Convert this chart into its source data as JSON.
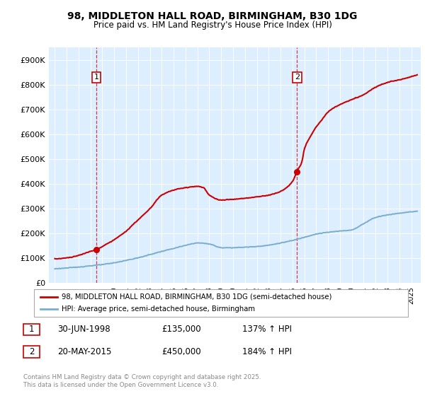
{
  "title1": "98, MIDDLETON HALL ROAD, BIRMINGHAM, B30 1DG",
  "title2": "Price paid vs. HM Land Registry's House Price Index (HPI)",
  "legend_line1": "98, MIDDLETON HALL ROAD, BIRMINGHAM, B30 1DG (semi-detached house)",
  "legend_line2": "HPI: Average price, semi-detached house, Birmingham",
  "annotation1_date": "30-JUN-1998",
  "annotation1_price": "£135,000",
  "annotation1_hpi": "137% ↑ HPI",
  "annotation2_date": "20-MAY-2015",
  "annotation2_price": "£450,000",
  "annotation2_hpi": "184% ↑ HPI",
  "footer": "Contains HM Land Registry data © Crown copyright and database right 2025.\nThis data is licensed under the Open Government Licence v3.0.",
  "red_color": "#cc0000",
  "blue_color": "#7aadcc",
  "plot_bg": "#ddeeff",
  "ylim_max": 950000,
  "yticks": [
    0,
    100000,
    200000,
    300000,
    400000,
    500000,
    600000,
    700000,
    800000,
    900000
  ],
  "ytick_labels": [
    "£0",
    "£100K",
    "£200K",
    "£300K",
    "£400K",
    "£500K",
    "£600K",
    "£700K",
    "£800K",
    "£900K"
  ],
  "sale1_x": 1998.5,
  "sale1_y": 135000,
  "sale2_x": 2015.38,
  "sale2_y": 450000,
  "xmin": 1994.5,
  "xmax": 2025.8,
  "hpi_anchors_x": [
    1995,
    1997,
    1998,
    1999,
    2000,
    2001,
    2002,
    2003,
    2004,
    2005,
    2006,
    2007,
    2008,
    2009,
    2010,
    2011,
    2012,
    2013,
    2014,
    2015,
    2016,
    2017,
    2018,
    2019,
    2020,
    2021,
    2022,
    2023,
    2024,
    2025.5
  ],
  "hpi_anchors_y": [
    58000,
    65000,
    70000,
    75000,
    82000,
    92000,
    102000,
    115000,
    128000,
    140000,
    152000,
    162000,
    158000,
    143000,
    143000,
    145000,
    148000,
    153000,
    162000,
    172000,
    185000,
    198000,
    205000,
    210000,
    215000,
    240000,
    265000,
    275000,
    282000,
    290000
  ],
  "red_anchors_x": [
    1995,
    1996,
    1997,
    1998,
    1998.5,
    1999,
    2000,
    2001,
    2002,
    2003,
    2004,
    2005,
    2006,
    2007,
    2007.5,
    2008,
    2009,
    2010,
    2011,
    2012,
    2013,
    2014,
    2015,
    2015.38,
    2015.8,
    2016,
    2016.5,
    2017,
    2017.5,
    2018,
    2019,
    2020,
    2021,
    2022,
    2023,
    2024,
    2025.5
  ],
  "red_anchors_y": [
    98000,
    102000,
    112000,
    128000,
    135000,
    148000,
    175000,
    210000,
    255000,
    300000,
    355000,
    375000,
    385000,
    390000,
    385000,
    355000,
    335000,
    338000,
    342000,
    348000,
    355000,
    370000,
    410000,
    450000,
    490000,
    540000,
    590000,
    630000,
    660000,
    690000,
    720000,
    740000,
    760000,
    790000,
    810000,
    820000,
    840000
  ]
}
